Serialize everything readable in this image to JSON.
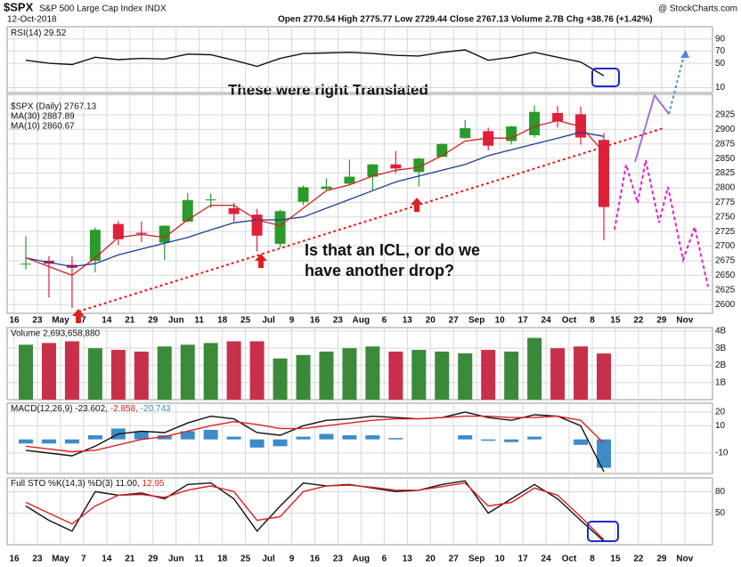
{
  "header": {
    "symbol": "$SPX",
    "name": "S&P 500 Large Cap Index INDX",
    "source": "@ StockCharts.com",
    "date": "12-Oct-2018",
    "quote": "Open 2770.54 High 2775.77 Low 2729.44 Close 2767.13 Volume 2.7B Chg +38.76 (+1.42%)"
  },
  "chart_data": [
    {
      "type": "candlestick",
      "title": "$SPX (Daily) 2767.13",
      "up_color": "#2a9a2a",
      "down_color": "#e0203a",
      "grid": true,
      "categories": [
        "16",
        "23",
        "May",
        "7",
        "14",
        "21",
        "29",
        "Jun",
        "11",
        "18",
        "25",
        "Jul",
        "9",
        "16",
        "23",
        "Aug",
        "6",
        "13",
        "20",
        "27",
        "Sep",
        "10",
        "17",
        "24",
        "Oct",
        "8",
        "15",
        "22",
        "29",
        "Nov"
      ],
      "open": [
        2670,
        2675,
        2668,
        2675,
        2738,
        2723,
        2706,
        2742,
        2780,
        2765,
        2754,
        2704,
        2776,
        2798,
        2807,
        2819,
        2840,
        2827,
        2853,
        2885,
        2897,
        2880,
        2890,
        2928,
        2926,
        2882,
        null,
        null,
        null,
        null
      ],
      "high": [
        2717,
        2683,
        2682,
        2732,
        2743,
        2742,
        2736,
        2791,
        2790,
        2774,
        2764,
        2763,
        2804,
        2816,
        2848,
        2841,
        2863,
        2852,
        2876,
        2916,
        2903,
        2906,
        2941,
        2940,
        2939,
        2894,
        null,
        null,
        null,
        null
      ],
      "low": [
        2660,
        2612,
        2594,
        2655,
        2702,
        2707,
        2676,
        2741,
        2765,
        2742,
        2691,
        2698,
        2770,
        2796,
        2805,
        2795,
        2825,
        2802,
        2853,
        2884,
        2864,
        2874,
        2886,
        2903,
        2874,
        2710,
        null,
        null,
        null,
        null
      ],
      "close": [
        2670,
        2670,
        2663,
        2728,
        2712,
        2721,
        2735,
        2779,
        2780,
        2755,
        2718,
        2760,
        2801,
        2802,
        2819,
        2840,
        2833,
        2850,
        2875,
        2902,
        2872,
        2905,
        2930,
        2914,
        2886,
        2767,
        null,
        null,
        null,
        null
      ],
      "series": [
        {
          "name": "MA(30) 2887.89",
          "color": "#1c3a9e",
          "values": [
            2680,
            2672,
            2665,
            2670,
            2685,
            2695,
            2705,
            2715,
            2728,
            2740,
            2745,
            2745,
            2750,
            2765,
            2780,
            2795,
            2810,
            2820,
            2830,
            2840,
            2855,
            2865,
            2875,
            2885,
            2895,
            2888,
            null,
            null,
            null,
            null
          ]
        },
        {
          "name": "MA(10) 2860.67",
          "color": "#d02020",
          "values": [
            2680,
            2665,
            2650,
            2680,
            2715,
            2720,
            2715,
            2745,
            2770,
            2770,
            2745,
            2735,
            2765,
            2795,
            2805,
            2820,
            2830,
            2835,
            2855,
            2880,
            2885,
            2885,
            2905,
            2915,
            2905,
            2861,
            null,
            null,
            null,
            null
          ]
        }
      ],
      "ylim": [
        2585,
        2960
      ],
      "yticks": [
        2600,
        2625,
        2650,
        2675,
        2700,
        2725,
        2750,
        2775,
        2800,
        2825,
        2850,
        2875,
        2900,
        2925
      ],
      "annotations": [
        {
          "text": "These were right Translated",
          "color": "#1a1acc"
        },
        {
          "text": "Is that an ICL, or do we",
          "color": "#e020d0"
        },
        {
          "text": "have another drop?",
          "color": "#e020d0"
        }
      ]
    },
    {
      "type": "line",
      "grid": true,
      "series": [
        {
          "name": "RSI(14) 29.52",
          "color": "#111111",
          "values": [
            55,
            50,
            48,
            60,
            56,
            58,
            57,
            65,
            64,
            55,
            45,
            58,
            66,
            67,
            68,
            66,
            63,
            62,
            68,
            72,
            55,
            60,
            68,
            60,
            52,
            29.52,
            null,
            null,
            null,
            null
          ]
        }
      ],
      "ylim": [
        2,
        110
      ],
      "yticks": [
        10,
        50,
        70,
        90
      ]
    },
    {
      "type": "bar",
      "title": "Volume 2,693,658,880",
      "up_color": "#3a8a3a",
      "down_color": "#c8304a",
      "grid": true,
      "values": [
        3.2,
        3.3,
        3.4,
        3.0,
        2.9,
        2.8,
        3.1,
        3.2,
        3.3,
        3.4,
        3.4,
        2.4,
        2.6,
        2.8,
        3.0,
        3.1,
        2.8,
        2.9,
        2.8,
        2.7,
        2.9,
        2.8,
        3.6,
        3.0,
        3.1,
        2.69,
        null,
        null,
        null,
        null
      ],
      "ylim": [
        0,
        4.2
      ],
      "yticks": [
        {
          "value": 1,
          "label": "1B"
        },
        {
          "value": 2,
          "label": "2B"
        },
        {
          "value": 3,
          "label": "3B"
        },
        {
          "value": 4,
          "label": "4B"
        }
      ]
    },
    {
      "type": "combo",
      "grid": true,
      "series": [
        {
          "name": "MACD(12,26,9) -23.602,",
          "color": "#111111",
          "mark": "line",
          "values": [
            -8,
            -10,
            -12,
            -5,
            4,
            6,
            5,
            12,
            17,
            15,
            5,
            3,
            10,
            14,
            15,
            17,
            16,
            15,
            16,
            20,
            16,
            14,
            18,
            17,
            10,
            -23.602,
            null,
            null,
            null,
            null
          ]
        },
        {
          "name": "-2.858,",
          "color": "#e02020",
          "mark": "line",
          "values": [
            -5,
            -7,
            -9,
            -8,
            -4,
            0,
            2,
            6,
            10,
            13,
            11,
            8,
            8,
            10,
            12,
            14,
            15,
            15,
            16,
            17,
            17,
            16,
            16,
            17,
            14,
            -2.858,
            null,
            null,
            null,
            null
          ]
        },
        {
          "name": "-20.743",
          "color": "#3c8cc8",
          "mark": "bar",
          "values": [
            -3,
            -3,
            -3,
            3,
            8,
            6,
            3,
            6,
            7,
            2,
            -6,
            -5,
            2,
            4,
            3,
            3,
            1,
            0,
            0,
            3,
            -1,
            -2,
            2,
            0,
            -4,
            -20.743,
            null,
            null,
            null,
            null
          ]
        }
      ],
      "ylim": [
        -25,
        26.5
      ],
      "yticks": [
        -10,
        10,
        20
      ]
    },
    {
      "type": "line",
      "grid": true,
      "categories": [
        "16",
        "23",
        "May",
        "7",
        "14",
        "21",
        "29",
        "Jun",
        "11",
        "18",
        "25",
        "Jul",
        "9",
        "16",
        "23",
        "Aug",
        "6",
        "13",
        "20",
        "27",
        "Sep",
        "10",
        "17",
        "24",
        "Oct",
        "8",
        "15",
        "22",
        "29",
        "Nov"
      ],
      "series": [
        {
          "name": "Full STO %K(14,3) %D(3) 11.00,",
          "color": "#111111",
          "values": [
            60,
            40,
            25,
            80,
            75,
            78,
            70,
            90,
            92,
            70,
            25,
            60,
            92,
            88,
            90,
            85,
            80,
            82,
            90,
            95,
            50,
            70,
            90,
            70,
            40,
            11,
            null,
            null,
            null,
            null
          ]
        },
        {
          "name": "12.95",
          "color": "#e02020",
          "values": [
            65,
            50,
            35,
            60,
            75,
            76,
            72,
            82,
            88,
            80,
            40,
            45,
            80,
            88,
            89,
            86,
            82,
            82,
            87,
            92,
            60,
            65,
            85,
            75,
            45,
            12.95,
            null,
            null,
            null,
            null
          ]
        }
      ],
      "ylim": [
        6,
        99
      ],
      "yticks": [
        50,
        80
      ]
    }
  ]
}
